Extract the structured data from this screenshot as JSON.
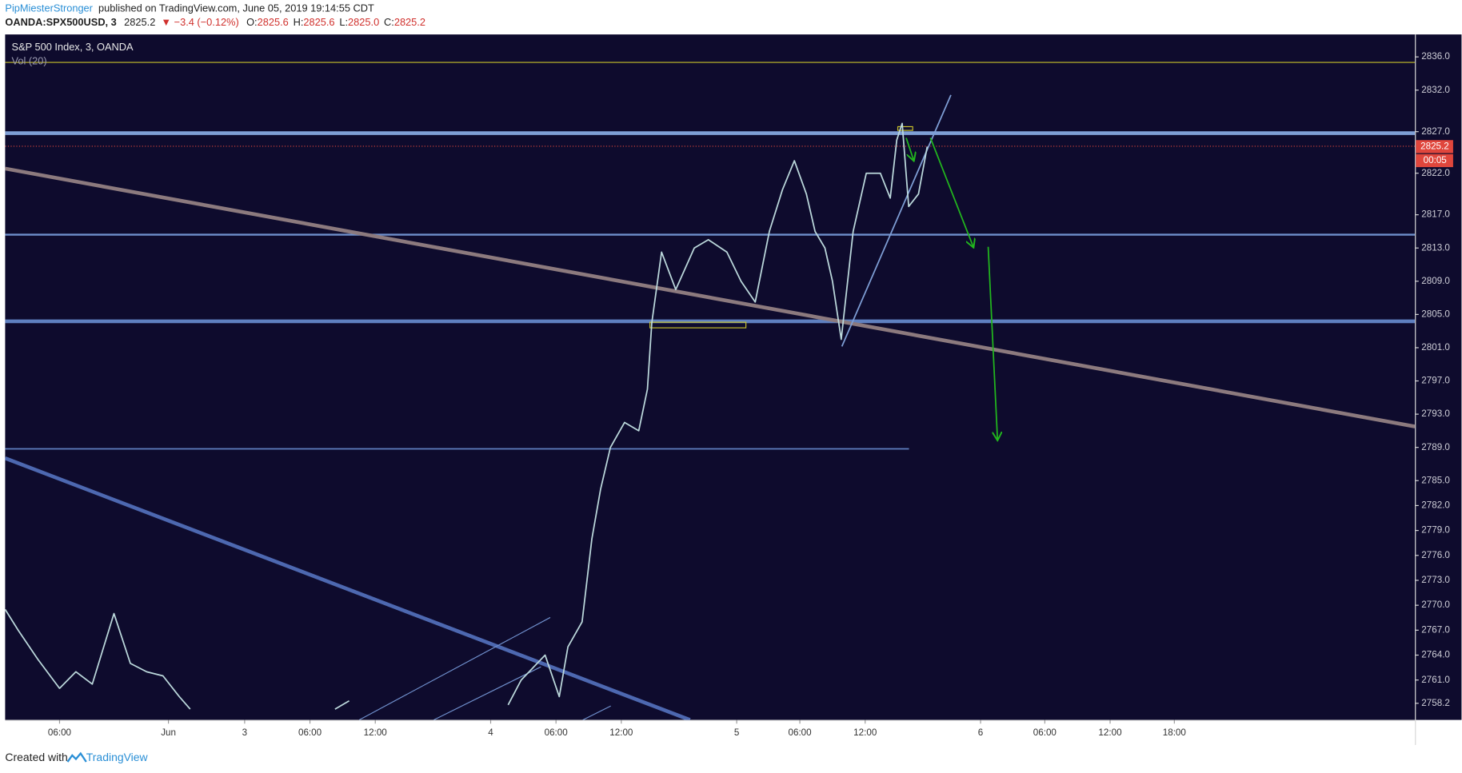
{
  "header": {
    "author": "PipMiesterStronger",
    "published": "published on TradingView.com, June 05, 2019 19:14:55 CDT",
    "symbol": "OANDA:SPX500USD, 3",
    "price": 2825.2,
    "change": "▼ −3.4 (−0.12%)",
    "ohlc": [
      {
        "label": "O:",
        "value": "2825.6"
      },
      {
        "label": "H:",
        "value": "2825.6"
      },
      {
        "label": "L:",
        "value": "2825.0"
      },
      {
        "label": "C:",
        "value": "2825.2"
      }
    ]
  },
  "chart_data": {
    "type": "line",
    "title": "S&P 500 Index, 3, OANDA",
    "indicator": "Vol (20)",
    "last_price": 2825.2,
    "countdown": "00:05",
    "x": [
      -22,
      -20.8,
      -19,
      -17,
      -15.5,
      -14,
      -12,
      -10.5,
      -9,
      -7.5,
      -6,
      -5,
      -3,
      8.3,
      9.6,
      11,
      24.2,
      25.4,
      27.6,
      28.9,
      29.7,
      31,
      31.9,
      32.7,
      33.6,
      34.9,
      36.2,
      37,
      37.4,
      38.3,
      39.6,
      41.3,
      42.6,
      44.3,
      45.6,
      46.9,
      48.2,
      49.4,
      50.5,
      51.6,
      52.4,
      53.3,
      54,
      54.8,
      55.9,
      57.1,
      58.4,
      59.3,
      59.9,
      60.4,
      61,
      61.9,
      62.7
    ],
    "series": [
      {
        "name": "SPX500USD",
        "color": "#bcd9dc",
        "values": [
          2769.5,
          2767,
          2763.5,
          2760,
          2762,
          2760.5,
          2769,
          2763,
          2762,
          2761.5,
          2759,
          2757.5,
          null,
          2757.5,
          2758.5,
          null,
          2758,
          2761,
          2764,
          2759,
          2765,
          2768,
          2778,
          2784,
          2789,
          2792,
          2791,
          2796,
          2804,
          2812.5,
          2808,
          2813,
          2814,
          2812.5,
          2809,
          2806.5,
          2815,
          2820,
          2823.5,
          2819.5,
          2815,
          2813,
          2809,
          2802,
          2815,
          2822,
          2822,
          2819,
          2826,
          2828,
          2818,
          2819.5,
          2825.2
        ]
      }
    ],
    "xlim": [
      -22,
      107.5
    ],
    "xticks": [
      {
        "value": -17,
        "label": "06:00"
      },
      {
        "value": -7,
        "label": "Jun"
      },
      {
        "value": 0,
        "label": "3"
      },
      {
        "value": 6,
        "label": "06:00"
      },
      {
        "value": 12,
        "label": "12:00"
      },
      {
        "value": 22.6,
        "label": "4"
      },
      {
        "value": 28.6,
        "label": "06:00"
      },
      {
        "value": 34.6,
        "label": "12:00"
      },
      {
        "value": 45.2,
        "label": "5"
      },
      {
        "value": 51,
        "label": "06:00"
      },
      {
        "value": 57,
        "label": "12:00"
      },
      {
        "value": 67.6,
        "label": "6"
      },
      {
        "value": 73.5,
        "label": "06:00"
      },
      {
        "value": 79.5,
        "label": "12:00"
      },
      {
        "value": 85.4,
        "label": "18:00"
      }
    ],
    "ylim": [
      2756.2,
      2838.7
    ],
    "yticks": [
      {
        "value": 2836,
        "label": "2836.0"
      },
      {
        "value": 2832,
        "label": "2832.0"
      },
      {
        "value": 2827,
        "label": "2827.0"
      },
      {
        "value": 2822,
        "label": "2822.0"
      },
      {
        "value": 2817,
        "label": "2817.0"
      },
      {
        "value": 2813,
        "label": "2813.0"
      },
      {
        "value": 2809,
        "label": "2809.0"
      },
      {
        "value": 2805,
        "label": "2805.0"
      },
      {
        "value": 2801,
        "label": "2801.0"
      },
      {
        "value": 2797,
        "label": "2797.0"
      },
      {
        "value": 2793,
        "label": "2793.0"
      },
      {
        "value": 2789,
        "label": "2789.0"
      },
      {
        "value": 2785,
        "label": "2785.0"
      },
      {
        "value": 2782,
        "label": "2782.0"
      },
      {
        "value": 2779,
        "label": "2779.0"
      },
      {
        "value": 2776,
        "label": "2776.0"
      },
      {
        "value": 2773,
        "label": "2773.0"
      },
      {
        "value": 2770,
        "label": "2770.0"
      },
      {
        "value": 2767,
        "label": "2767.0"
      },
      {
        "value": 2764,
        "label": "2764.0"
      },
      {
        "value": 2761,
        "label": "2761.0"
      },
      2758.2
    ],
    "grid": false
  },
  "footer": {
    "created": "Created with",
    "brand": "TradingView"
  }
}
